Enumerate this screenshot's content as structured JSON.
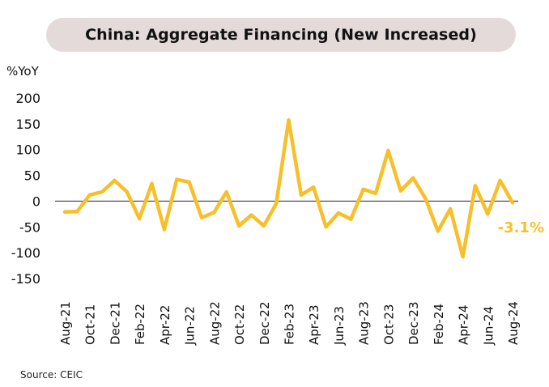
{
  "title": "China: Aggregate Financing (New Increased)",
  "source": "Source: CEIC",
  "chart_data": {
    "type": "line",
    "title": "China: Aggregate Financing (New Increased)",
    "ylabel": "%YoY",
    "xlabel": "",
    "ylim": [
      -150,
      200
    ],
    "yticks": [
      200,
      150,
      100,
      50,
      0,
      -50,
      -100,
      -150
    ],
    "grid": false,
    "zero_line": true,
    "line_color": "#f7bf2a",
    "x": [
      "Aug-21",
      "Sep-21",
      "Oct-21",
      "Nov-21",
      "Dec-21",
      "Jan-22",
      "Feb-22",
      "Mar-22",
      "Apr-22",
      "May-22",
      "Jun-22",
      "Jul-22",
      "Aug-22",
      "Sep-22",
      "Oct-22",
      "Nov-22",
      "Dec-22",
      "Jan-23",
      "Feb-23",
      "Mar-23",
      "Apr-23",
      "May-23",
      "Jun-23",
      "Jul-23",
      "Aug-23",
      "Sep-23",
      "Oct-23",
      "Nov-23",
      "Dec-23",
      "Jan-24",
      "Feb-24",
      "Mar-24",
      "Apr-24",
      "May-24",
      "Jun-24",
      "Jul-24",
      "Aug-24"
    ],
    "tick_labels": [
      "Aug-21",
      "Oct-21",
      "Dec-21",
      "Feb-22",
      "Apr-22",
      "Jun-22",
      "Aug-22",
      "Oct-22",
      "Dec-22",
      "Feb-23",
      "Apr-23",
      "Jun-23",
      "Aug-23",
      "Oct-23",
      "Dec-23",
      "Feb-24",
      "Apr-24",
      "Jun-24",
      "Aug-24"
    ],
    "series": [
      {
        "name": "Aggregate Financing %YoY",
        "values": [
          -21,
          -20,
          12,
          18,
          40,
          18,
          -34,
          34,
          -55,
          42,
          37,
          -32,
          -22,
          18,
          -48,
          -27,
          -48,
          -5,
          157,
          12,
          27,
          -50,
          -23,
          -35,
          23,
          15,
          98,
          20,
          45,
          5,
          -58,
          -15,
          -108,
          30,
          -25,
          40,
          -3.1
        ]
      }
    ],
    "annotations": [
      {
        "text": "-3.1%",
        "at": "Aug-24",
        "color": "#f7bf2a"
      }
    ]
  }
}
